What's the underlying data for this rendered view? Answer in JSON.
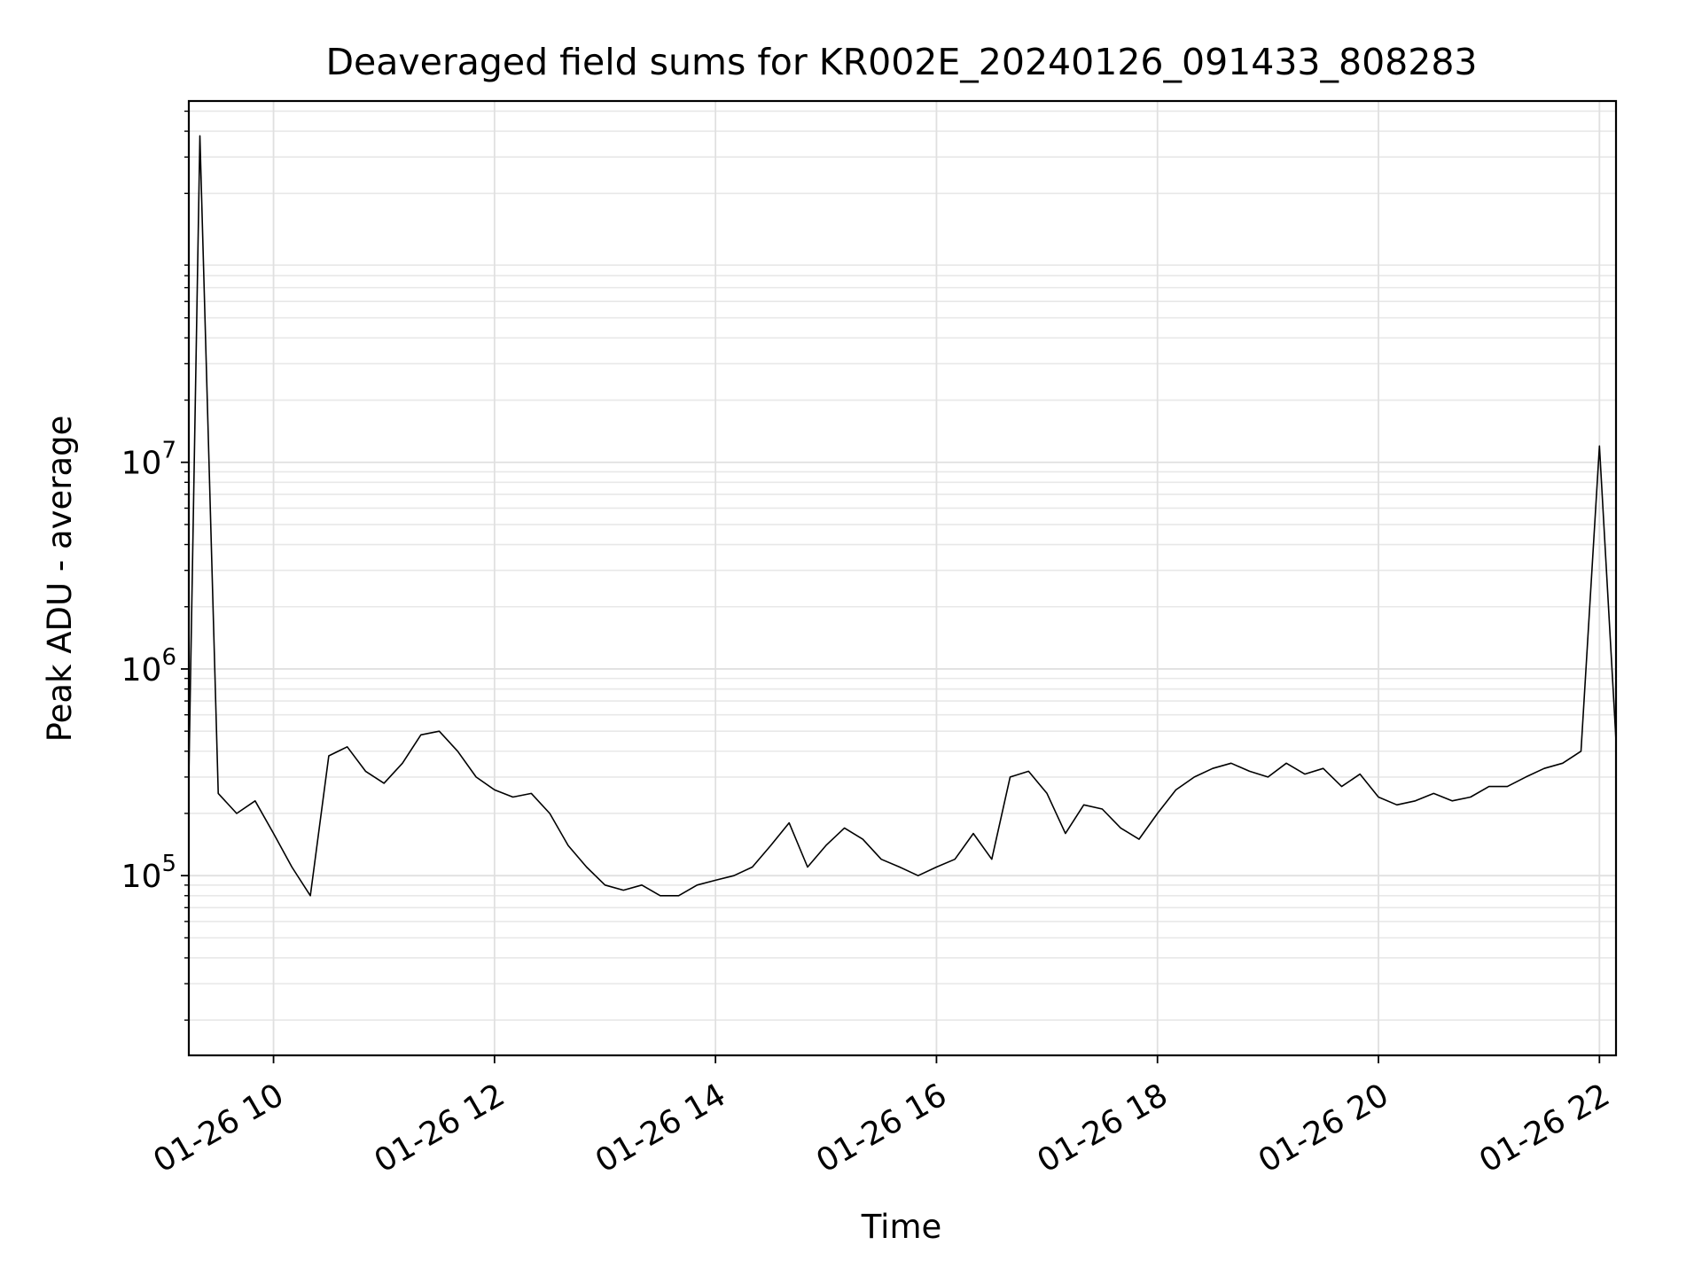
{
  "chart_data": {
    "type": "line",
    "title": "Deaveraged field sums for KR002E_20240126_091433_808283",
    "xlabel": "Time",
    "ylabel": "Peak ADU - average",
    "x_ticks": [
      "01-26 10",
      "01-26 12",
      "01-26 14",
      "01-26 16",
      "01-26 18",
      "01-26 20",
      "01-26 22"
    ],
    "y_ticks": [
      {
        "base": "10",
        "exp": "5",
        "value": 100000
      },
      {
        "base": "10",
        "exp": "6",
        "value": 1000000
      },
      {
        "base": "10",
        "exp": "7",
        "value": 10000000
      }
    ],
    "y_scale": "log",
    "x_range": [
      "2024-01-26 09:14",
      "2024-01-26 22:09"
    ],
    "ylim": [
      13500,
      560000000
    ],
    "grid": true,
    "line_color": "#000000",
    "series": [
      {
        "x": [
          "2024-01-26 09:14",
          "2024-01-26 09:20",
          "2024-01-26 09:30",
          "2024-01-26 09:40",
          "2024-01-26 09:50",
          "2024-01-26 10:00",
          "2024-01-26 10:10",
          "2024-01-26 10:20",
          "2024-01-26 10:30",
          "2024-01-26 10:40",
          "2024-01-26 10:50",
          "2024-01-26 11:00",
          "2024-01-26 11:10",
          "2024-01-26 11:20",
          "2024-01-26 11:30",
          "2024-01-26 11:40",
          "2024-01-26 11:50",
          "2024-01-26 12:00",
          "2024-01-26 12:10",
          "2024-01-26 12:20",
          "2024-01-26 12:30",
          "2024-01-26 12:40",
          "2024-01-26 12:50",
          "2024-01-26 13:00",
          "2024-01-26 13:10",
          "2024-01-26 13:20",
          "2024-01-26 13:30",
          "2024-01-26 13:40",
          "2024-01-26 13:50",
          "2024-01-26 14:00",
          "2024-01-26 14:10",
          "2024-01-26 14:20",
          "2024-01-26 14:30",
          "2024-01-26 14:40",
          "2024-01-26 14:50",
          "2024-01-26 15:00",
          "2024-01-26 15:10",
          "2024-01-26 15:20",
          "2024-01-26 15:30",
          "2024-01-26 15:40",
          "2024-01-26 15:50",
          "2024-01-26 16:00",
          "2024-01-26 16:10",
          "2024-01-26 16:20",
          "2024-01-26 16:30",
          "2024-01-26 16:40",
          "2024-01-26 16:50",
          "2024-01-26 17:00",
          "2024-01-26 17:10",
          "2024-01-26 17:20",
          "2024-01-26 17:30",
          "2024-01-26 17:40",
          "2024-01-26 17:50",
          "2024-01-26 18:00",
          "2024-01-26 18:10",
          "2024-01-26 18:20",
          "2024-01-26 18:30",
          "2024-01-26 18:40",
          "2024-01-26 18:50",
          "2024-01-26 19:00",
          "2024-01-26 19:10",
          "2024-01-26 19:20",
          "2024-01-26 19:30",
          "2024-01-26 19:40",
          "2024-01-26 19:50",
          "2024-01-26 20:00",
          "2024-01-26 20:10",
          "2024-01-26 20:20",
          "2024-01-26 20:30",
          "2024-01-26 20:40",
          "2024-01-26 20:50",
          "2024-01-26 21:00",
          "2024-01-26 21:10",
          "2024-01-26 21:20",
          "2024-01-26 21:30",
          "2024-01-26 21:40",
          "2024-01-26 21:50",
          "2024-01-26 22:00",
          "2024-01-26 22:09"
        ],
        "y": [
          300000,
          380000000,
          250000,
          200000,
          230000,
          160000,
          110000,
          80000,
          380000,
          420000,
          320000,
          280000,
          350000,
          480000,
          500000,
          400000,
          300000,
          260000,
          240000,
          250000,
          200000,
          140000,
          110000,
          90000,
          85000,
          90000,
          80000,
          80000,
          90000,
          95000,
          100000,
          110000,
          140000,
          180000,
          110000,
          140000,
          170000,
          150000,
          120000,
          110000,
          100000,
          110000,
          120000,
          160000,
          120000,
          300000,
          320000,
          250000,
          160000,
          220000,
          210000,
          170000,
          150000,
          200000,
          260000,
          300000,
          330000,
          350000,
          320000,
          300000,
          350000,
          310000,
          330000,
          270000,
          310000,
          240000,
          220000,
          230000,
          250000,
          230000,
          240000,
          270000,
          270000,
          300000,
          330000,
          350000,
          400000,
          12000000,
          450000
        ]
      }
    ]
  }
}
